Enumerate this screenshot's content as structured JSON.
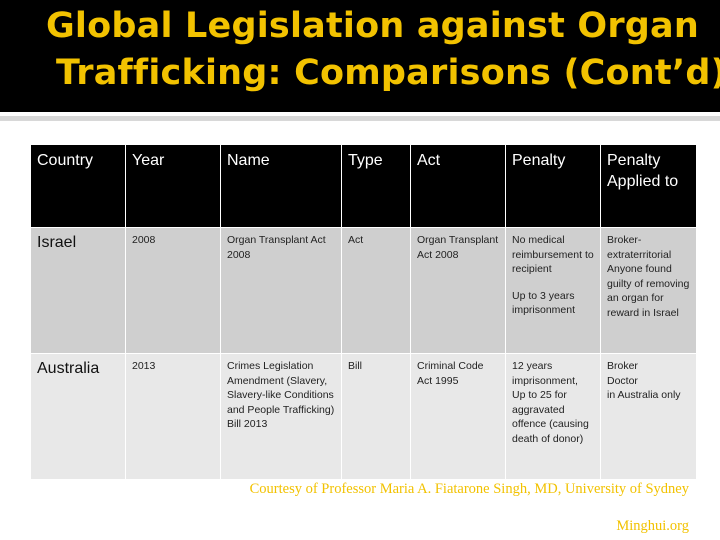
{
  "slide": {
    "title_line1": "Global Legislation against Organ",
    "title_line2": "Trafficking:  Comparisons (Cont’d)",
    "credit": "Courtesy of Professor Maria A. Fiatarone Singh, MD, University of Sydney",
    "source": "Minghui.org",
    "colors": {
      "title": "#f2c200",
      "header_bg": "#000000",
      "row1_bg": "#cfcfcf",
      "row2_bg": "#e8e8e8"
    }
  },
  "table": {
    "headers": [
      "Country",
      "Year",
      "Name",
      "Type",
      "Act",
      "Penalty",
      "Penalty Applied to"
    ],
    "rows": [
      {
        "country": "Israel",
        "year": "2008",
        "name": "Organ Transplant Act 2008",
        "type": "Act",
        "act": "Organ Transplant Act 2008",
        "penalty": [
          "No medical reimbursement to recipient",
          "Up to 3 years imprisonment"
        ],
        "applied_to": [
          "Broker-extraterritorial",
          "Anyone  found guilty of removing an organ for reward in Israel"
        ]
      },
      {
        "country": "Australia",
        "year": "2013",
        "name": "Crimes Legislation Amendment (Slavery, Slavery-like Conditions and People Trafficking) Bill 2013",
        "type": "Bill",
        "act": "Criminal Code Act 1995",
        "penalty": [
          "12 years imprisonment,",
          "Up to 25 for aggravated offence (causing death of donor)"
        ],
        "applied_to": [
          "Broker",
          "Doctor",
          "in Australia only"
        ]
      }
    ]
  }
}
